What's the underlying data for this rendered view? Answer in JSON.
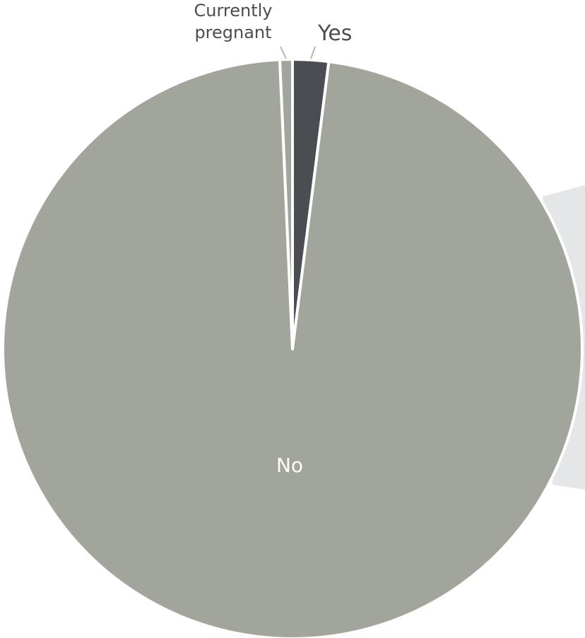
{
  "chart_data": {
    "type": "pie",
    "slices": [
      {
        "label": "Yes",
        "value": 2.0,
        "color": "#4a4e52"
      },
      {
        "label": "No",
        "value": 97.3,
        "color": "#a2a59b"
      },
      {
        "label": "Currently pregnant",
        "value": 0.7,
        "color": "#a2a59b"
      }
    ],
    "labels": {
      "currently_pregnant_line1": "Currently",
      "currently_pregnant_line2": "pregnant",
      "yes": "Yes",
      "no": "No"
    },
    "title": "",
    "legend": "none"
  },
  "colors": {
    "slice_border": "#ffffff",
    "background_panel": "#e5e6e7",
    "leader_line": "#b5b8b0",
    "label_dark": "#4a4e52",
    "label_light": "#ffffff"
  }
}
